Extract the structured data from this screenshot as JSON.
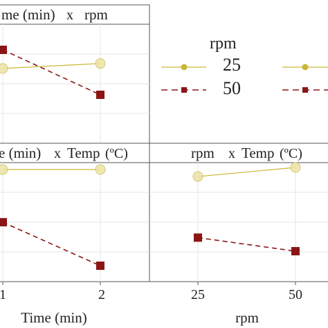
{
  "chart_data": {
    "type": "line",
    "panels": [
      {
        "id": "time-rpm",
        "strip": {
          "left": "me (min)",
          "sep": "x",
          "right": "rpm"
        },
        "x_categories": [
          "1",
          "2"
        ],
        "series": [
          {
            "name": "25",
            "values": [
              0.62,
              0.72
            ]
          },
          {
            "name": "50",
            "values": [
              1.0,
              0.08
            ]
          }
        ]
      },
      {
        "id": "time-temp",
        "strip": {
          "left": "e (min)",
          "sep": "x",
          "right": "Temp",
          "unit": "(ºC)"
        },
        "x_categories": [
          "1",
          "2"
        ],
        "series": [
          {
            "name": "25",
            "values": [
              0.98,
              0.98
            ]
          },
          {
            "name": "50",
            "values": [
              0.52,
              0.14
            ]
          }
        ]
      },
      {
        "id": "rpm-temp",
        "strip": {
          "left": "rpm",
          "sep": "x",
          "right": "Temp",
          "unit": "(ºC)"
        },
        "x_categories": [
          "25",
          "50"
        ],
        "series": [
          {
            "name": "25",
            "values": [
              0.92,
              1.0
            ]
          },
          {
            "name": "50",
            "values": [
              0.38,
              0.26
            ]
          }
        ]
      }
    ],
    "x_tick_labels_left": [
      "1",
      "2"
    ],
    "x_tick_labels_right": [
      "25",
      "50"
    ],
    "xlabel_left": "Time (min)",
    "xlabel_right": "rpm",
    "legend": {
      "title": "rpm",
      "placement": "top-right",
      "entries": [
        {
          "name": "25",
          "color": "#c9b735",
          "shape": "circle",
          "linestyle": "solid"
        },
        {
          "name": "50",
          "color": "#8b1515",
          "shape": "square",
          "linestyle": "dashed"
        }
      ]
    },
    "colors": {
      "series_25": "#c9b735",
      "series_50": "#8b1515",
      "panel_border": "#555555",
      "grid": "#e6e6e6"
    }
  }
}
